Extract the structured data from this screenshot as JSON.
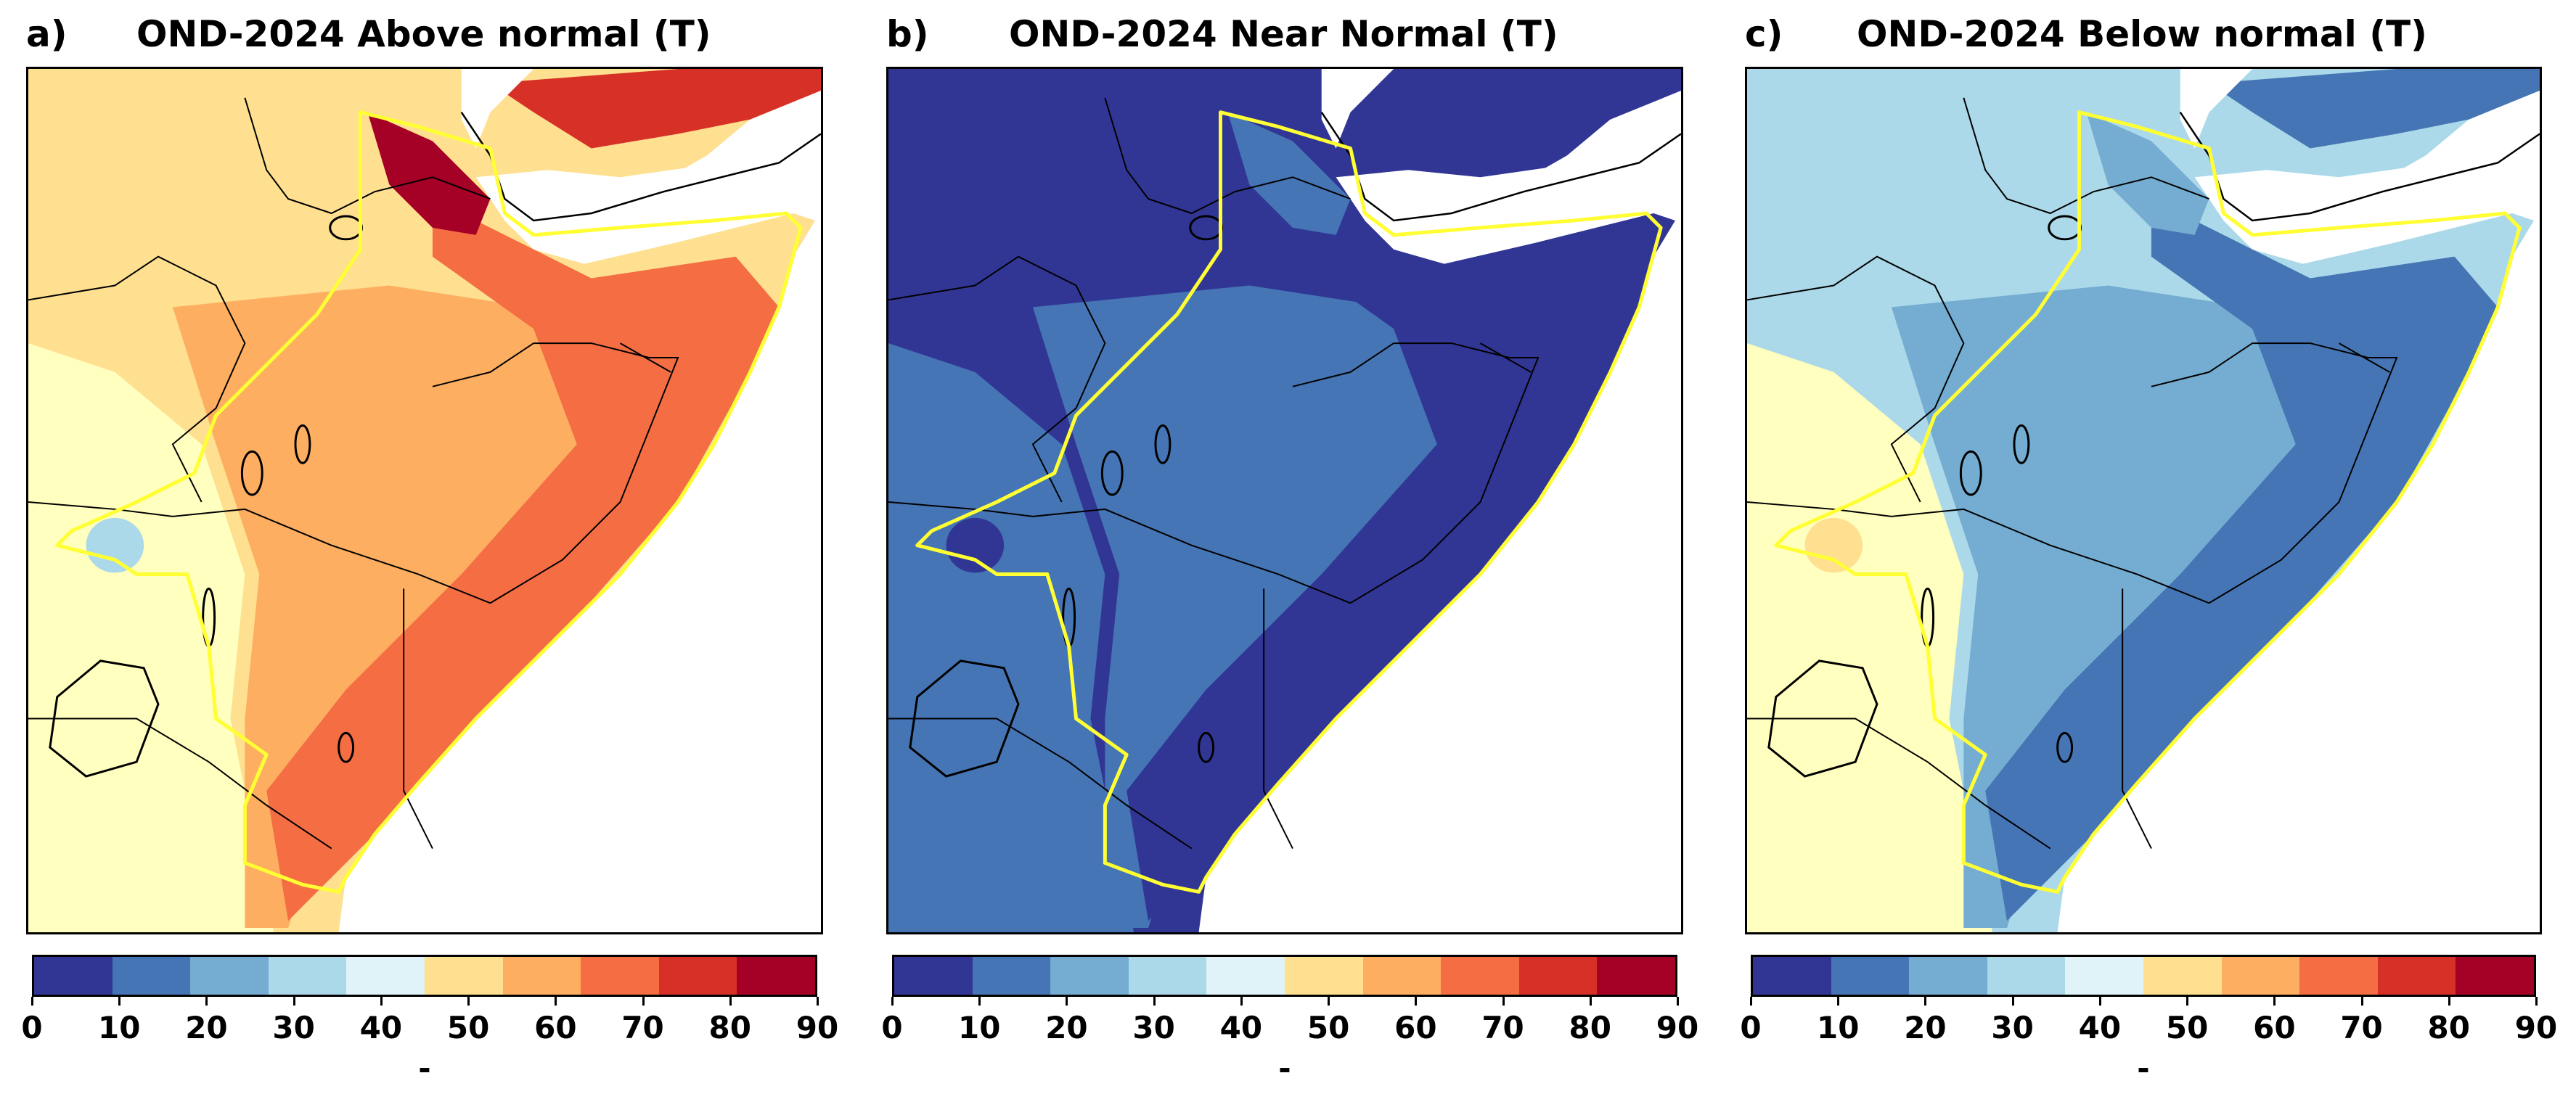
{
  "colorbar": {
    "ticks": [
      "0",
      "10",
      "20",
      "30",
      "40",
      "50",
      "60",
      "70",
      "80",
      "90"
    ],
    "colors": [
      "#313695",
      "#4575b4",
      "#74add1",
      "#abd9e9",
      "#e0f3f8",
      "#fee090",
      "#fdae61",
      "#f46d43",
      "#d73027",
      "#a50026"
    ],
    "label": "-"
  },
  "panels": [
    {
      "letter": "a)",
      "title": "OND-2024 Above normal (T)",
      "palette": {
        "base": "#fee090",
        "mid": "#fdae61",
        "high": "#f46d43",
        "peak": "#d73027",
        "top": "#a50026",
        "low": "#ffffbf",
        "lake": "#abd9e9"
      }
    },
    {
      "letter": "b)",
      "title": "OND-2024 Near Normal (T)",
      "palette": {
        "base": "#313695",
        "mid": "#4575b4",
        "high": "#313695",
        "peak": "#313695",
        "top": "#4575b4",
        "low": "#4575b4",
        "lake": "#313695"
      }
    },
    {
      "letter": "c)",
      "title": "OND-2024 Below normal (T)",
      "palette": {
        "base": "#abd9e9",
        "mid": "#74add1",
        "high": "#4575b4",
        "peak": "#4575b4",
        "top": "#74add1",
        "low": "#ffffbf",
        "lake": "#fee090"
      }
    }
  ]
}
